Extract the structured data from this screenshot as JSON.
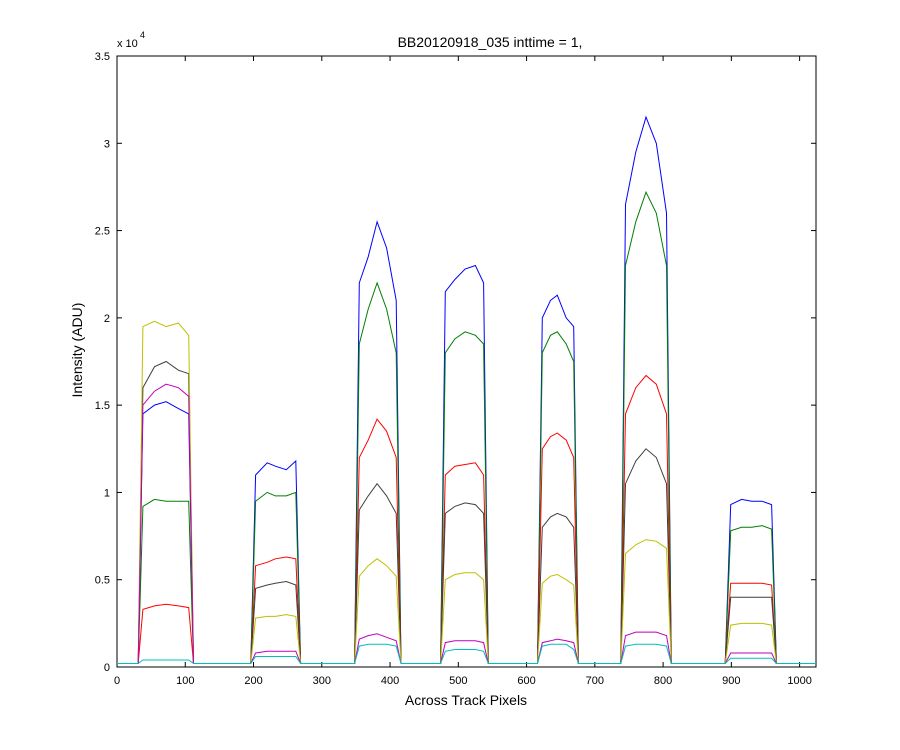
{
  "chart_data": {
    "type": "line",
    "title": "BB20120918_035 inttime = 1,",
    "xlabel": "Across Track Pixels",
    "ylabel": "Intensity (ADU)",
    "y_exponent_base": "x 10",
    "y_exponent": "4",
    "x": [
      0,
      31,
      38,
      55,
      72,
      90,
      105,
      112,
      196,
      203,
      220,
      232,
      248,
      262,
      269,
      348,
      355,
      368,
      381,
      395,
      409,
      416,
      474,
      481,
      495,
      510,
      525,
      537,
      544,
      616,
      623,
      635,
      645,
      658,
      669,
      676,
      738,
      745,
      760,
      775,
      790,
      805,
      812,
      891,
      899,
      915,
      930,
      945,
      959,
      966,
      1024
    ],
    "xlim": [
      0,
      1024
    ],
    "xticks": [
      0,
      100,
      200,
      300,
      400,
      500,
      600,
      700,
      800,
      900,
      1000
    ],
    "ylim": [
      0,
      3.5
    ],
    "yticks": [
      0,
      0.5,
      1,
      1.5,
      2,
      2.5,
      3,
      3.5
    ],
    "series": [
      {
        "color": "#0000ff",
        "values": [
          0.02,
          0.02,
          1.45,
          1.5,
          1.52,
          1.48,
          1.45,
          0.02,
          0.02,
          1.1,
          1.17,
          1.15,
          1.13,
          1.18,
          0.02,
          0.02,
          2.2,
          2.35,
          2.55,
          2.4,
          2.1,
          0.02,
          0.02,
          2.15,
          2.22,
          2.28,
          2.3,
          2.2,
          0.02,
          0.02,
          2.0,
          2.1,
          2.13,
          2.0,
          1.95,
          0.02,
          0.02,
          2.65,
          2.95,
          3.15,
          3.0,
          2.6,
          0.02,
          0.02,
          0.93,
          0.96,
          0.95,
          0.95,
          0.93,
          0.02,
          0.02
        ]
      },
      {
        "color": "#007f00",
        "values": [
          0.02,
          0.02,
          0.92,
          0.96,
          0.95,
          0.95,
          0.95,
          0.02,
          0.02,
          0.95,
          1.0,
          0.98,
          0.98,
          1.0,
          0.02,
          0.02,
          1.85,
          2.05,
          2.2,
          2.05,
          1.8,
          0.02,
          0.02,
          1.8,
          1.88,
          1.92,
          1.9,
          1.85,
          0.02,
          0.02,
          1.8,
          1.9,
          1.92,
          1.85,
          1.75,
          0.02,
          0.02,
          2.3,
          2.55,
          2.72,
          2.6,
          2.3,
          0.02,
          0.02,
          0.78,
          0.8,
          0.8,
          0.81,
          0.79,
          0.02,
          0.02
        ]
      },
      {
        "color": "#ff0000",
        "values": [
          0.02,
          0.02,
          0.33,
          0.35,
          0.36,
          0.35,
          0.34,
          0.02,
          0.02,
          0.58,
          0.6,
          0.62,
          0.63,
          0.62,
          0.02,
          0.02,
          1.2,
          1.3,
          1.42,
          1.35,
          1.2,
          0.02,
          0.02,
          1.1,
          1.15,
          1.16,
          1.17,
          1.1,
          0.02,
          0.02,
          1.25,
          1.32,
          1.34,
          1.3,
          1.2,
          0.02,
          0.02,
          1.45,
          1.6,
          1.67,
          1.62,
          1.45,
          0.02,
          0.02,
          0.48,
          0.48,
          0.48,
          0.48,
          0.47,
          0.02,
          0.02
        ]
      },
      {
        "color": "#3f3f3f",
        "values": [
          0.02,
          0.02,
          1.6,
          1.72,
          1.75,
          1.7,
          1.68,
          0.02,
          0.02,
          0.45,
          0.47,
          0.48,
          0.49,
          0.47,
          0.02,
          0.02,
          0.9,
          0.98,
          1.05,
          0.98,
          0.88,
          0.02,
          0.02,
          0.88,
          0.92,
          0.94,
          0.93,
          0.88,
          0.02,
          0.02,
          0.8,
          0.86,
          0.88,
          0.86,
          0.8,
          0.02,
          0.02,
          1.05,
          1.18,
          1.25,
          1.2,
          1.05,
          0.02,
          0.02,
          0.4,
          0.4,
          0.4,
          0.4,
          0.4,
          0.02,
          0.02
        ]
      },
      {
        "color": "#bfbf00",
        "values": [
          0.02,
          0.02,
          1.95,
          1.98,
          1.95,
          1.97,
          1.9,
          0.02,
          0.02,
          0.28,
          0.29,
          0.29,
          0.3,
          0.29,
          0.02,
          0.02,
          0.52,
          0.58,
          0.62,
          0.58,
          0.52,
          0.02,
          0.02,
          0.5,
          0.53,
          0.54,
          0.54,
          0.5,
          0.02,
          0.02,
          0.48,
          0.52,
          0.53,
          0.5,
          0.47,
          0.02,
          0.02,
          0.65,
          0.7,
          0.73,
          0.72,
          0.68,
          0.02,
          0.02,
          0.24,
          0.25,
          0.25,
          0.25,
          0.24,
          0.02,
          0.02
        ]
      },
      {
        "color": "#bf00bf",
        "values": [
          0.02,
          0.02,
          1.5,
          1.58,
          1.62,
          1.6,
          1.55,
          0.02,
          0.02,
          0.08,
          0.09,
          0.09,
          0.09,
          0.09,
          0.02,
          0.02,
          0.16,
          0.18,
          0.19,
          0.17,
          0.15,
          0.02,
          0.02,
          0.14,
          0.15,
          0.15,
          0.15,
          0.14,
          0.02,
          0.02,
          0.14,
          0.15,
          0.16,
          0.15,
          0.14,
          0.02,
          0.02,
          0.18,
          0.2,
          0.2,
          0.2,
          0.18,
          0.02,
          0.02,
          0.08,
          0.08,
          0.08,
          0.08,
          0.08,
          0.02,
          0.02
        ]
      },
      {
        "color": "#00bfbf",
        "values": [
          0.02,
          0.02,
          0.04,
          0.04,
          0.04,
          0.04,
          0.04,
          0.02,
          0.02,
          0.06,
          0.06,
          0.06,
          0.06,
          0.06,
          0.02,
          0.02,
          0.12,
          0.13,
          0.13,
          0.13,
          0.12,
          0.02,
          0.02,
          0.09,
          0.1,
          0.1,
          0.1,
          0.09,
          0.02,
          0.02,
          0.12,
          0.13,
          0.13,
          0.13,
          0.1,
          0.02,
          0.02,
          0.12,
          0.13,
          0.13,
          0.13,
          0.12,
          0.02,
          0.02,
          0.05,
          0.05,
          0.05,
          0.05,
          0.05,
          0.02,
          0.02
        ]
      }
    ]
  }
}
